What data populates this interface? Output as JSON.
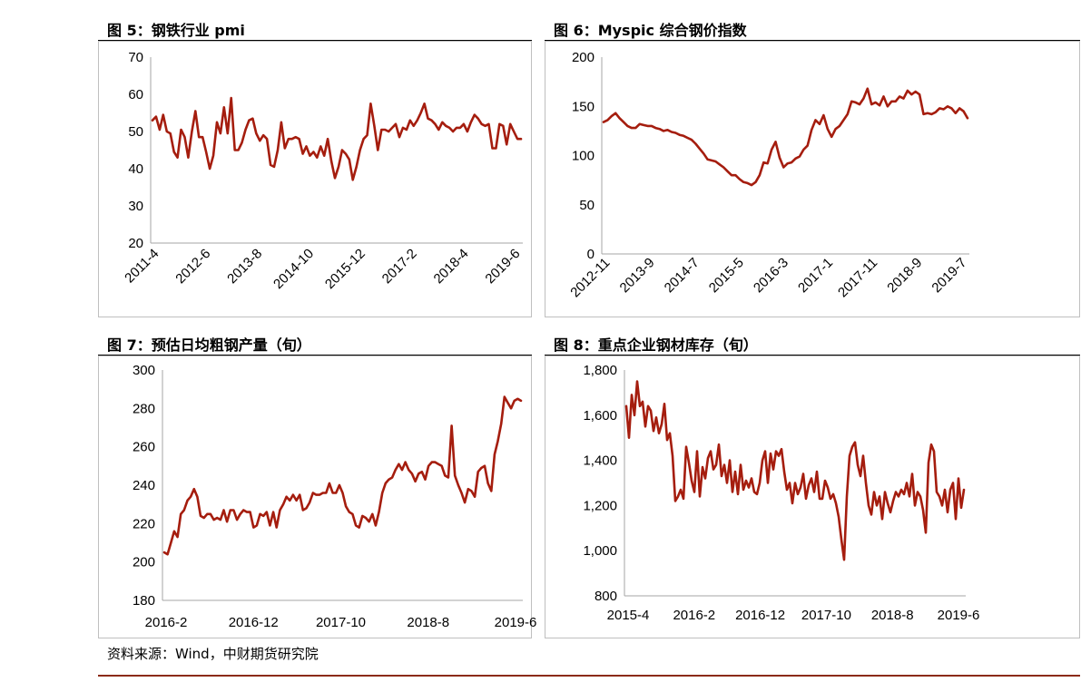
{
  "panels": [
    {
      "title": "图 5：钢铁行业 pmi"
    },
    {
      "title": "图 6：Myspic 综合钢价指数"
    },
    {
      "title": "图 7：预估日均粗钢产量（旬）"
    },
    {
      "title": "图 8：重点企业钢材库存（旬）"
    }
  ],
  "source": "资料来源：Wind，中财期货研究院",
  "colors": {
    "series": "#a51d0e",
    "axis": "#a6a6a6",
    "footer_rule": "#8b2a14"
  },
  "chart_data": [
    {
      "type": "line",
      "title": "钢铁行业 pmi",
      "ylim": [
        20,
        70
      ],
      "yticks": [
        "70",
        "60",
        "50",
        "40",
        "30",
        "20"
      ],
      "ytick_values": [
        70,
        60,
        50,
        40,
        30,
        20
      ],
      "xticks": [
        "2011-4",
        "2012-6",
        "2013-8",
        "2014-10",
        "2015-12",
        "2017-2",
        "2018-4",
        "2019-6"
      ],
      "x_rotated": true,
      "grid": false,
      "values": [
        53,
        54,
        50.5,
        54.5,
        50,
        49.5,
        44.5,
        43,
        50.5,
        48.5,
        43,
        50,
        55.5,
        48.5,
        48.5,
        44.5,
        40,
        43.5,
        52.5,
        49.5,
        56.5,
        49.5,
        59,
        45,
        45,
        47,
        50.5,
        53,
        53.5,
        49.5,
        47.5,
        49,
        48,
        41,
        40.5,
        45,
        52.5,
        45.5,
        48,
        48,
        48.5,
        48,
        44,
        46,
        43.5,
        44.5,
        43,
        46,
        43.5,
        48,
        42,
        37.5,
        40.5,
        45,
        44,
        42.5,
        37,
        40.5,
        45,
        48,
        49,
        57.5,
        51.5,
        45,
        50.5,
        50.5,
        50,
        51,
        52,
        48.5,
        51,
        50.5,
        53,
        51.5,
        53,
        55,
        57.5,
        53.5,
        53,
        52,
        50.5,
        52.5,
        51.5,
        51,
        50,
        51,
        51,
        52,
        50,
        52.5,
        54.5,
        53.5,
        52,
        51.5,
        52,
        45.5,
        45.5,
        52,
        51.5,
        46.5,
        52,
        50,
        48,
        48
      ]
    },
    {
      "type": "line",
      "title": "Myspic 综合钢价指数",
      "ylim": [
        0,
        200
      ],
      "yticks": [
        "200",
        "150",
        "100",
        "50",
        "0"
      ],
      "ytick_values": [
        200,
        150,
        100,
        50,
        0
      ],
      "xticks": [
        "2012-11",
        "2013-9",
        "2014-7",
        "2015-5",
        "2016-3",
        "2017-1",
        "2017-11",
        "2018-9",
        "2019-7"
      ],
      "x_rotated": true,
      "grid": false,
      "values": [
        134,
        136,
        140,
        143,
        138,
        134,
        130,
        128,
        128,
        132,
        131,
        130,
        130,
        128,
        127,
        125,
        126,
        124,
        123,
        121,
        120,
        118,
        116,
        112,
        107,
        102,
        96,
        95,
        94,
        91,
        88,
        84,
        80,
        80,
        76,
        73,
        72,
        70,
        73,
        80,
        93,
        92,
        106,
        114,
        98,
        88,
        92,
        93,
        97,
        99,
        106,
        110,
        126,
        136,
        132,
        141,
        127,
        119,
        127,
        130,
        136,
        142,
        155,
        154,
        152,
        158,
        168,
        152,
        154,
        151,
        160,
        150,
        155,
        155,
        160,
        158,
        166,
        162,
        165,
        162,
        142,
        143,
        142,
        144,
        148,
        147,
        150,
        148,
        143,
        148,
        145,
        138
      ]
    },
    {
      "type": "line",
      "title": "预估日均粗钢产量（旬）",
      "ylim": [
        180,
        300
      ],
      "yticks": [
        "300",
        "280",
        "260",
        "240",
        "220",
        "200",
        "180"
      ],
      "ytick_values": [
        300,
        280,
        260,
        240,
        220,
        200,
        180
      ],
      "xticks": [
        "2016-2",
        "2016-12",
        "2017-10",
        "2018-8",
        "2019-6"
      ],
      "x_rotated": false,
      "grid": false,
      "values": [
        205,
        204,
        210,
        216,
        213,
        225,
        227,
        232,
        234,
        238,
        234,
        224,
        223,
        225,
        225,
        222,
        223,
        222,
        227,
        221,
        227,
        227,
        222,
        225,
        227,
        226,
        226,
        218,
        219,
        225,
        224,
        226,
        219,
        226,
        218,
        227,
        230,
        234,
        232,
        235,
        232,
        235,
        227,
        228,
        231,
        236,
        235,
        235,
        236,
        236,
        241,
        236,
        236,
        240,
        236,
        229,
        226,
        225,
        219,
        218,
        224,
        223,
        221,
        225,
        219,
        226,
        236,
        241,
        243,
        244,
        248,
        251,
        248,
        252,
        248,
        246,
        242,
        246,
        247,
        243,
        250,
        252,
        252,
        251,
        250,
        245,
        244,
        271,
        245,
        240,
        236,
        231,
        238,
        237,
        234,
        247,
        249,
        250,
        241,
        237,
        256,
        263,
        272,
        286,
        283,
        280,
        284,
        285,
        284
      ]
    },
    {
      "type": "line",
      "title": "重点企业钢材库存（旬）",
      "ylim": [
        800,
        1800
      ],
      "yticks": [
        "1,800",
        "1,600",
        "1,400",
        "1,200",
        "1,000",
        "800"
      ],
      "ytick_values": [
        1800,
        1600,
        1400,
        1200,
        1000,
        800
      ],
      "xticks": [
        "2015-4",
        "2016-2",
        "2016-12",
        "2017-10",
        "2018-8",
        "2019-6"
      ],
      "x_rotated": false,
      "grid": false,
      "values": [
        1640,
        1500,
        1690,
        1600,
        1750,
        1640,
        1660,
        1550,
        1640,
        1620,
        1530,
        1590,
        1520,
        1560,
        1650,
        1490,
        1520,
        1420,
        1220,
        1240,
        1270,
        1230,
        1460,
        1390,
        1310,
        1260,
        1440,
        1240,
        1370,
        1320,
        1410,
        1440,
        1360,
        1380,
        1470,
        1330,
        1380,
        1300,
        1400,
        1260,
        1350,
        1250,
        1380,
        1270,
        1310,
        1280,
        1320,
        1260,
        1250,
        1300,
        1400,
        1440,
        1300,
        1430,
        1360,
        1440,
        1420,
        1450,
        1350,
        1270,
        1300,
        1210,
        1300,
        1250,
        1280,
        1340,
        1230,
        1290,
        1320,
        1260,
        1350,
        1230,
        1230,
        1310,
        1280,
        1230,
        1250,
        1210,
        1150,
        1050,
        960,
        1240,
        1420,
        1460,
        1480,
        1380,
        1330,
        1420,
        1300,
        1200,
        1160,
        1260,
        1200,
        1240,
        1140,
        1260,
        1210,
        1170,
        1220,
        1260,
        1240,
        1270,
        1250,
        1300,
        1240,
        1340,
        1200,
        1260,
        1240,
        1180,
        1080,
        1390,
        1470,
        1440,
        1260,
        1240,
        1200,
        1270,
        1170,
        1270,
        1300,
        1140,
        1320,
        1190,
        1270
      ]
    }
  ]
}
